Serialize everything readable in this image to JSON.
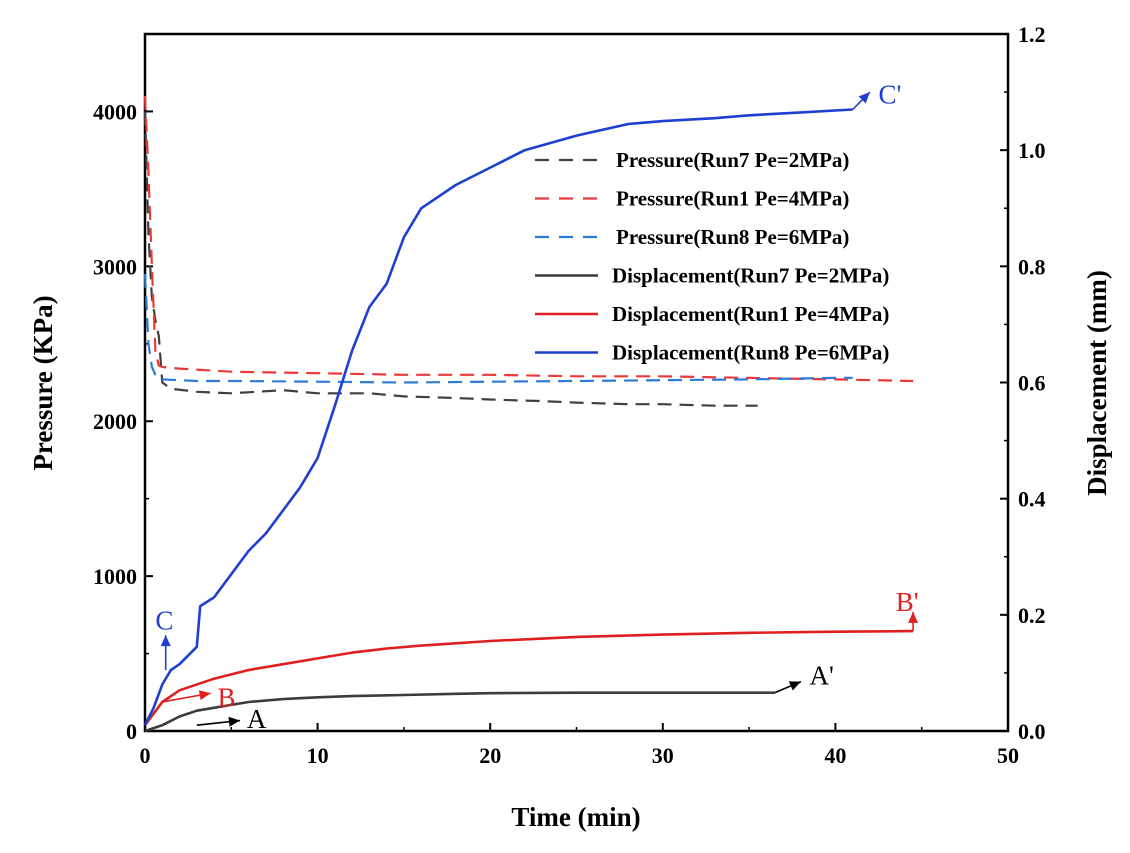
{
  "chart_data": {
    "type": "line",
    "xlabel": "Time (min)",
    "ylabel_left": "Pressure (KPa)",
    "ylabel_right": "Displacement (mm)",
    "xlim": [
      0,
      50
    ],
    "ylim_left": [
      0,
      4500
    ],
    "ylim_right": [
      0,
      1.2
    ],
    "x_ticks": [
      0,
      10,
      20,
      30,
      40,
      50
    ],
    "y_left_ticks": [
      0,
      1000,
      2000,
      3000,
      4000
    ],
    "y_right_ticks": [
      0.0,
      0.2,
      0.4,
      0.6,
      0.8,
      1.0,
      1.2
    ],
    "grid": false,
    "legend_position": "upper-right",
    "series": [
      {
        "name": "Pressure(Run7 Pe=2MPa)",
        "axis": "left",
        "style": "dashed",
        "color": "#404040",
        "points": [
          [
            0,
            4000
          ],
          [
            0.2,
            3200
          ],
          [
            0.4,
            2800
          ],
          [
            0.6,
            2650
          ],
          [
            0.8,
            2550
          ],
          [
            1.0,
            2250
          ],
          [
            1.5,
            2210
          ],
          [
            3,
            2190
          ],
          [
            5,
            2180
          ],
          [
            8,
            2200
          ],
          [
            10,
            2180
          ],
          [
            13,
            2180
          ],
          [
            15,
            2160
          ],
          [
            18,
            2150
          ],
          [
            20,
            2140
          ],
          [
            23,
            2130
          ],
          [
            25,
            2120
          ],
          [
            28,
            2110
          ],
          [
            30,
            2110
          ],
          [
            33,
            2100
          ],
          [
            35.5,
            2100
          ]
        ]
      },
      {
        "name": "Pressure(Run1 Pe=4MPa)",
        "axis": "left",
        "style": "dashed",
        "color": "#e8393b",
        "points": [
          [
            0,
            4100
          ],
          [
            0.2,
            3600
          ],
          [
            0.4,
            3000
          ],
          [
            0.6,
            2450
          ],
          [
            0.8,
            2360
          ],
          [
            1.0,
            2350
          ],
          [
            2,
            2340
          ],
          [
            5,
            2320
          ],
          [
            10,
            2310
          ],
          [
            15,
            2300
          ],
          [
            20,
            2300
          ],
          [
            25,
            2290
          ],
          [
            30,
            2290
          ],
          [
            35,
            2280
          ],
          [
            40,
            2270
          ],
          [
            44.5,
            2260
          ]
        ]
      },
      {
        "name": "Pressure(Run8 Pe=6MPa)",
        "axis": "left",
        "style": "dashed",
        "color": "#2f7bd6",
        "points": [
          [
            0,
            2950
          ],
          [
            0.2,
            2500
          ],
          [
            0.4,
            2350
          ],
          [
            0.6,
            2300
          ],
          [
            0.8,
            2280
          ],
          [
            1.0,
            2270
          ],
          [
            3,
            2260
          ],
          [
            5,
            2260
          ],
          [
            10,
            2255
          ],
          [
            15,
            2250
          ],
          [
            20,
            2255
          ],
          [
            25,
            2260
          ],
          [
            30,
            2265
          ],
          [
            35,
            2270
          ],
          [
            40,
            2280
          ],
          [
            41,
            2280
          ]
        ]
      },
      {
        "name": "Displacement(Run7 Pe=2MPa)",
        "axis": "right",
        "style": "solid",
        "color": "#3c3c3c",
        "points": [
          [
            0,
            0
          ],
          [
            1,
            0.01
          ],
          [
            2,
            0.025
          ],
          [
            3,
            0.035
          ],
          [
            4,
            0.04
          ],
          [
            5,
            0.045
          ],
          [
            6,
            0.05
          ],
          [
            8,
            0.055
          ],
          [
            10,
            0.058
          ],
          [
            12,
            0.06
          ],
          [
            15,
            0.062
          ],
          [
            18,
            0.064
          ],
          [
            20,
            0.065
          ],
          [
            25,
            0.066
          ],
          [
            30,
            0.066
          ],
          [
            33,
            0.066
          ],
          [
            36.5,
            0.066
          ]
        ]
      },
      {
        "name": "Displacement(Run1 Pe=4MPa)",
        "axis": "right",
        "style": "solid",
        "color": "#e02020",
        "points": [
          [
            0,
            0.01
          ],
          [
            0.5,
            0.03
          ],
          [
            1,
            0.05
          ],
          [
            2,
            0.07
          ],
          [
            4,
            0.09
          ],
          [
            6,
            0.105
          ],
          [
            8,
            0.115
          ],
          [
            10,
            0.125
          ],
          [
            12,
            0.135
          ],
          [
            14,
            0.142
          ],
          [
            16,
            0.147
          ],
          [
            18,
            0.151
          ],
          [
            20,
            0.155
          ],
          [
            25,
            0.162
          ],
          [
            30,
            0.166
          ],
          [
            35,
            0.169
          ],
          [
            40,
            0.171
          ],
          [
            44.5,
            0.172
          ]
        ]
      },
      {
        "name": "Displacement(Run8 Pe=6MPa)",
        "axis": "right",
        "style": "solid",
        "color": "#1f3fd0",
        "points": [
          [
            0,
            0.01
          ],
          [
            0.5,
            0.04
          ],
          [
            1,
            0.08
          ],
          [
            1.5,
            0.105
          ],
          [
            2,
            0.115
          ],
          [
            3,
            0.145
          ],
          [
            3.2,
            0.215
          ],
          [
            4,
            0.23
          ],
          [
            5,
            0.27
          ],
          [
            6,
            0.31
          ],
          [
            7,
            0.34
          ],
          [
            8,
            0.38
          ],
          [
            9,
            0.42
          ],
          [
            10,
            0.47
          ],
          [
            11,
            0.56
          ],
          [
            12,
            0.655
          ],
          [
            13,
            0.73
          ],
          [
            14,
            0.77
          ],
          [
            15,
            0.85
          ],
          [
            16,
            0.9
          ],
          [
            18,
            0.94
          ],
          [
            20,
            0.97
          ],
          [
            22,
            1.0
          ],
          [
            25,
            1.025
          ],
          [
            28,
            1.045
          ],
          [
            30,
            1.05
          ],
          [
            33,
            1.055
          ],
          [
            35,
            1.06
          ],
          [
            38,
            1.065
          ],
          [
            41,
            1.07
          ]
        ]
      }
    ],
    "annotations": [
      {
        "label": "A",
        "color": "#000000",
        "arrow_from": [
          3,
          0.01
        ],
        "arrow_to": [
          5.5,
          0.018
        ],
        "text_at": [
          5.9,
          0.005
        ]
      },
      {
        "label": "A'",
        "color": "#000000",
        "arrow_from": [
          36.5,
          0.066
        ],
        "arrow_to": [
          38,
          0.085
        ],
        "text_at": [
          38.5,
          0.08
        ]
      },
      {
        "label": "B",
        "color": "#e02020",
        "arrow_from": [
          1,
          0.05
        ],
        "arrow_to": [
          3.8,
          0.065
        ],
        "text_at": [
          4.2,
          0.042
        ]
      },
      {
        "label": "B'",
        "color": "#e02020",
        "arrow_from": [
          44.5,
          0.172
        ],
        "arrow_to": [
          44.5,
          0.205
        ],
        "text_at": [
          43.5,
          0.207
        ]
      },
      {
        "label": "C",
        "color": "#1f3fd0",
        "arrow_from": [
          1.2,
          0.105
        ],
        "arrow_to": [
          1.2,
          0.165
        ],
        "text_at": [
          0.6,
          0.175
        ]
      },
      {
        "label": "C'",
        "color": "#1f3fd0",
        "arrow_from": [
          41,
          1.07
        ],
        "arrow_to": [
          42,
          1.1
        ],
        "text_at": [
          42.5,
          1.08
        ]
      }
    ]
  }
}
